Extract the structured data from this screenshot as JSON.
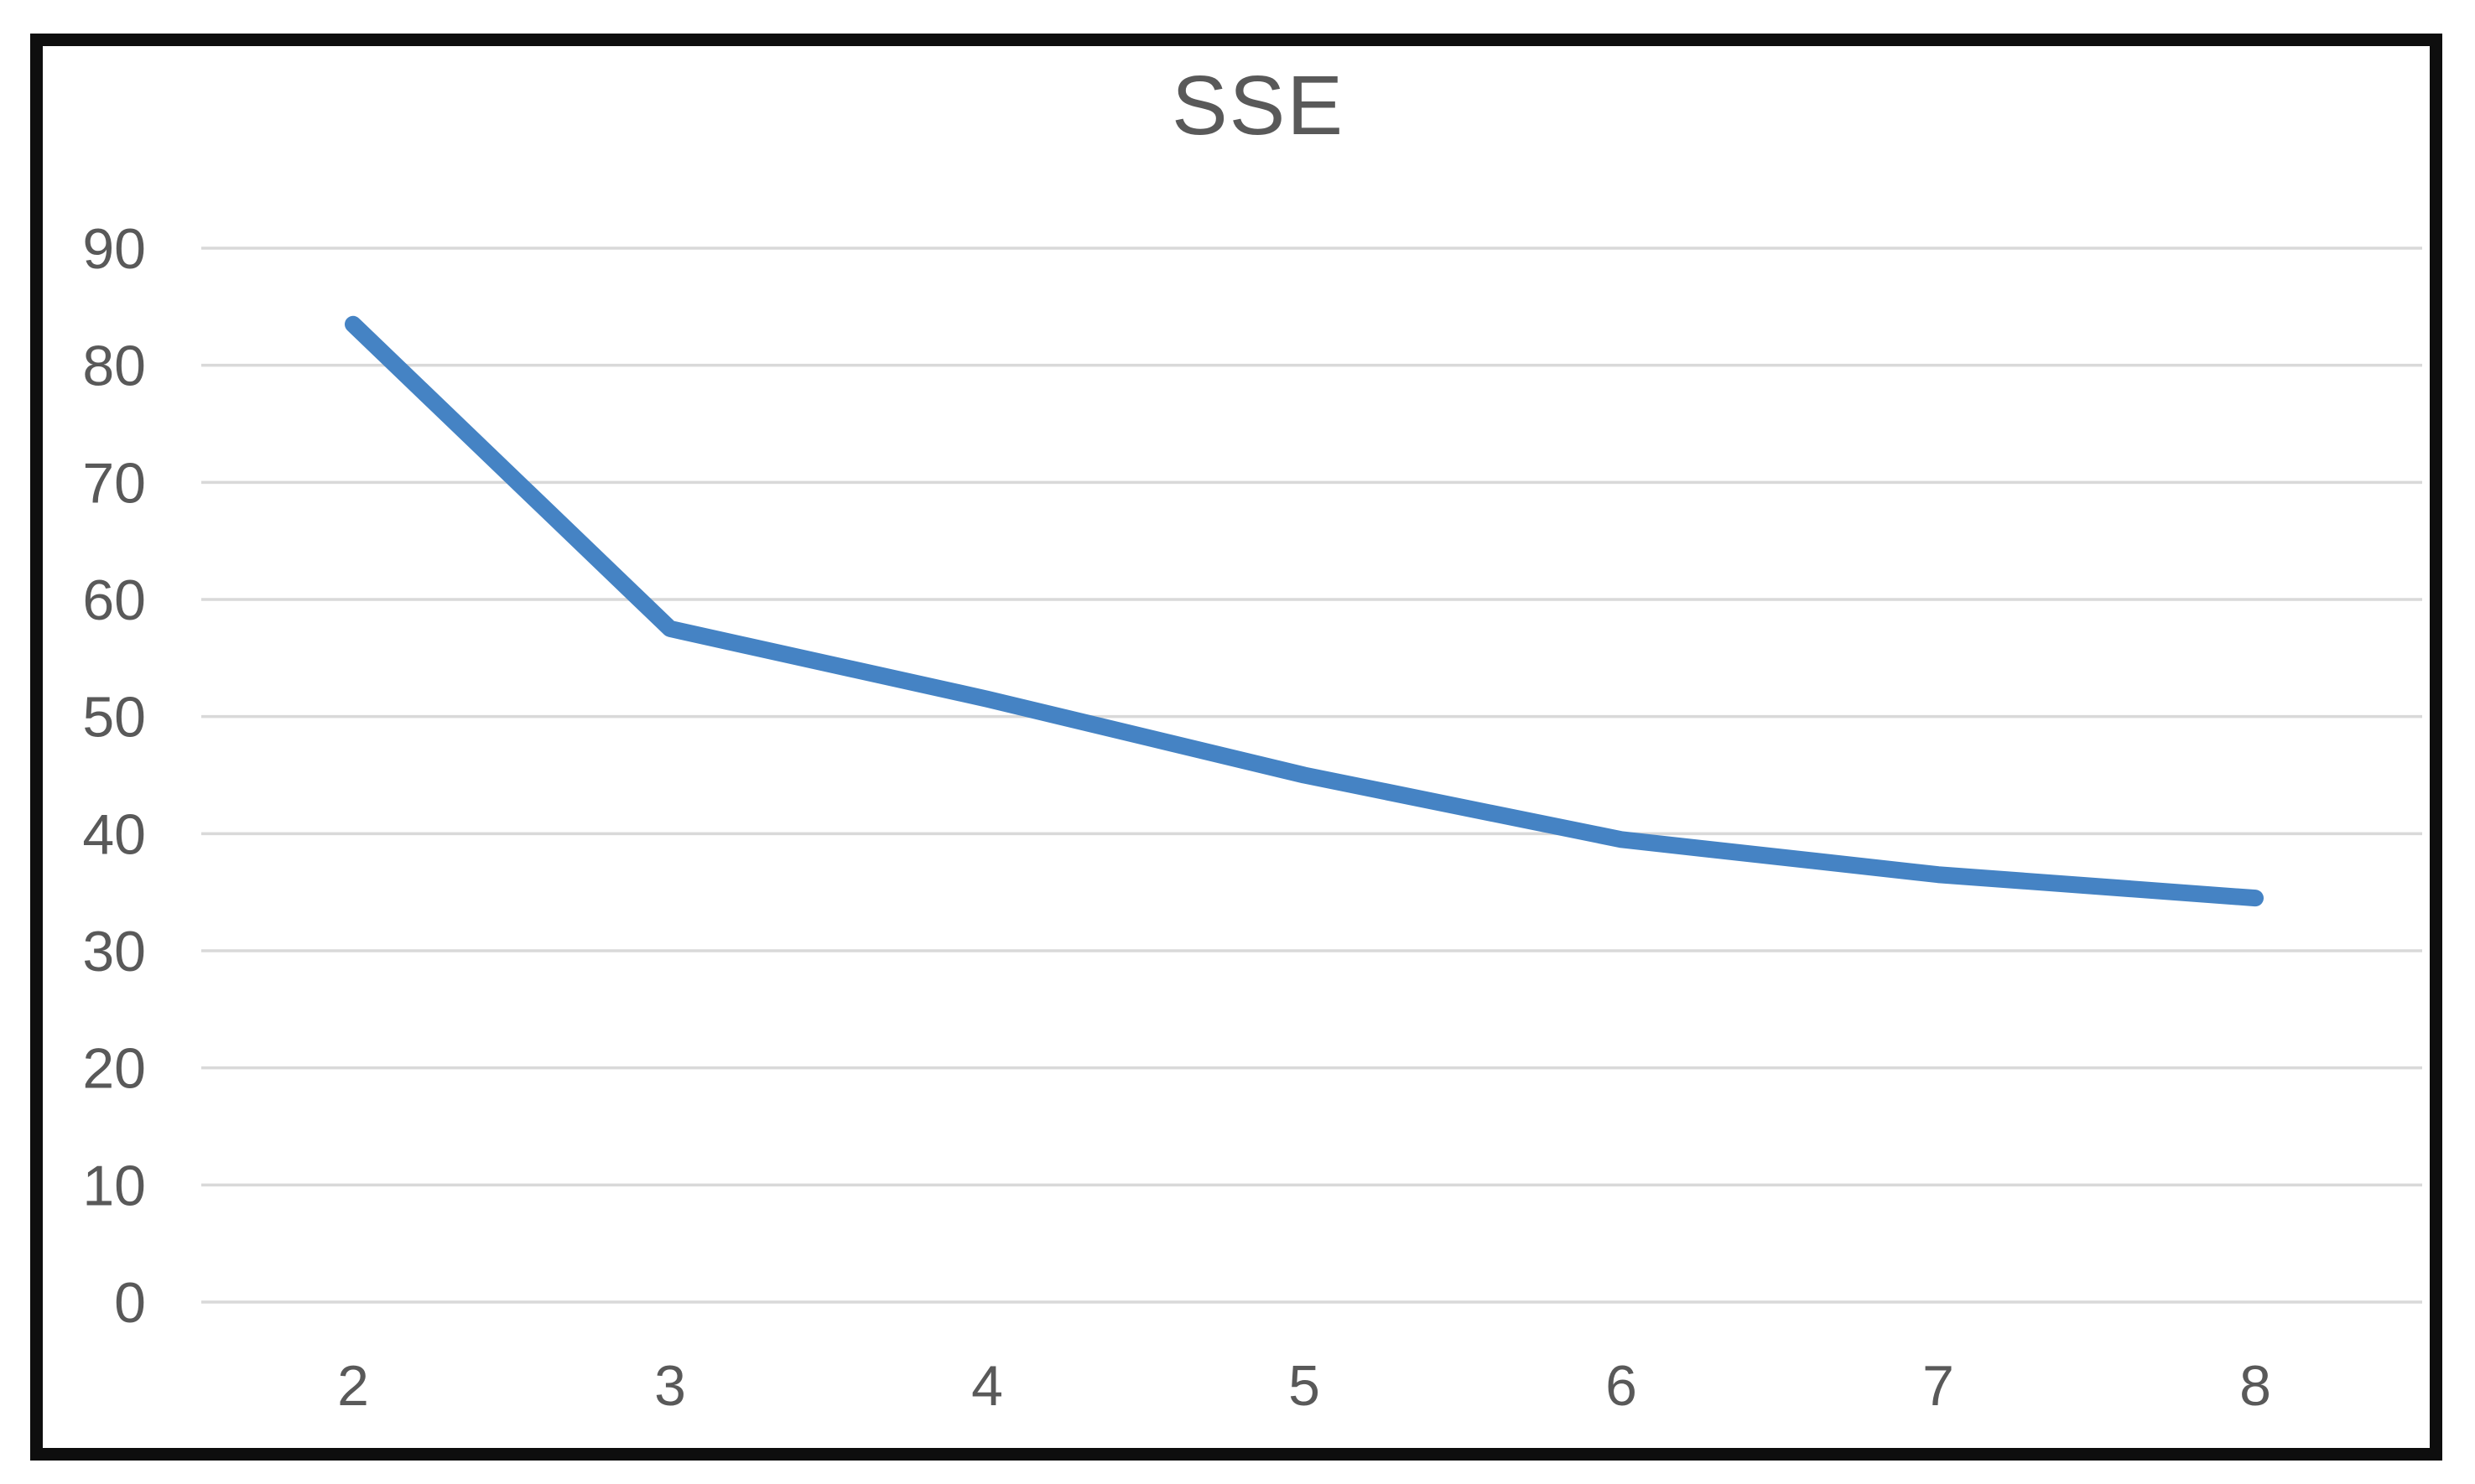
{
  "page": {
    "background_color": "#ffffff",
    "frame_border_color": "#0e0e0e"
  },
  "chart_data": {
    "type": "line",
    "title": "SSE",
    "x": [
      2,
      3,
      4,
      5,
      6,
      7,
      8
    ],
    "x_tick_labels": [
      "2",
      "3",
      "4",
      "5",
      "6",
      "7",
      "8"
    ],
    "series": [
      {
        "name": "SSE",
        "values": [
          83.5,
          57.5,
          51.5,
          45,
          39.5,
          36.5,
          34.5
        ],
        "color": "#4583c4"
      }
    ],
    "xlabel": "",
    "ylabel": "",
    "ylim": [
      0,
      90
    ],
    "yticks": [
      0,
      10,
      20,
      30,
      40,
      50,
      60,
      70,
      80,
      90
    ],
    "ytick_labels": [
      "0",
      "10",
      "20",
      "30",
      "40",
      "50",
      "60",
      "70",
      "80",
      "90"
    ],
    "grid": true,
    "gridline_color": "#d9d9d9",
    "tick_label_color": "#595959",
    "title_color": "#595959",
    "legend_position": "none",
    "markers": "none"
  }
}
